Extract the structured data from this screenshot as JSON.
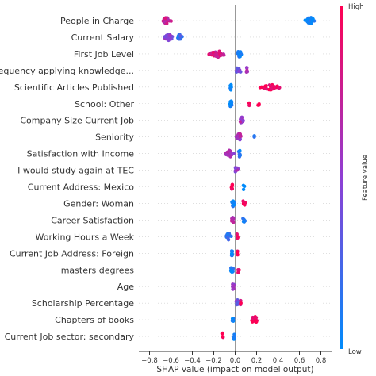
{
  "chart_data": {
    "type": "scatter",
    "subtype": "shap-beeswarm",
    "xlabel": "SHAP value (impact on model output)",
    "xlim": [
      -0.9,
      0.9
    ],
    "xticks": [
      "−0.8",
      "−0.6",
      "−0.4",
      "−0.2",
      "0.0",
      "0.2",
      "0.4",
      "0.6",
      "0.8"
    ],
    "xtick_values": [
      -0.8,
      -0.6,
      -0.4,
      -0.2,
      0.0,
      0.2,
      0.4,
      0.6,
      0.8
    ],
    "grid": false,
    "colorbar": {
      "label": "Feature value",
      "high": "High",
      "low": "Low",
      "high_color": "#ff0052",
      "low_color": "#008bfb"
    },
    "features": [
      {
        "name": "People in Charge",
        "clusters": [
          {
            "x": -0.64,
            "spread": 0.05,
            "n": 30,
            "v": 0.75
          },
          {
            "x": 0.7,
            "spread": 0.06,
            "n": 22,
            "v": 0.05
          }
        ]
      },
      {
        "name": "Current Salary",
        "clusters": [
          {
            "x": -0.62,
            "spread": 0.06,
            "n": 28,
            "v": 0.5
          },
          {
            "x": -0.52,
            "spread": 0.03,
            "n": 10,
            "v": 0.2
          }
        ]
      },
      {
        "name": "First Job Level",
        "clusters": [
          {
            "x": -0.16,
            "spread": 0.1,
            "n": 40,
            "v": 0.8
          },
          {
            "x": 0.04,
            "spread": 0.03,
            "n": 14,
            "v": 0.1
          }
        ]
      },
      {
        "name": "Frequency applying knowledge...",
        "clusters": [
          {
            "x": 0.03,
            "spread": 0.04,
            "n": 14,
            "v": 0.4
          },
          {
            "x": 0.11,
            "spread": 0.01,
            "n": 5,
            "v": 0.6
          }
        ]
      },
      {
        "name": "Scientific Articles Published",
        "clusters": [
          {
            "x": 0.33,
            "spread": 0.12,
            "n": 26,
            "v": 0.95
          },
          {
            "x": -0.04,
            "spread": 0.01,
            "n": 8,
            "v": 0.05
          }
        ]
      },
      {
        "name": "School: Other",
        "clusters": [
          {
            "x": -0.04,
            "spread": 0.02,
            "n": 10,
            "v": 0.05
          },
          {
            "x": 0.13,
            "spread": 0.01,
            "n": 4,
            "v": 0.95
          },
          {
            "x": 0.22,
            "spread": 0.01,
            "n": 4,
            "v": 0.95
          }
        ]
      },
      {
        "name": "Company Size Current Job",
        "clusters": [
          {
            "x": 0.06,
            "spread": 0.02,
            "n": 14,
            "v": 0.6
          }
        ]
      },
      {
        "name": "Seniority",
        "clusters": [
          {
            "x": 0.04,
            "spread": 0.04,
            "n": 16,
            "v": 0.6
          },
          {
            "x": 0.18,
            "spread": 0.01,
            "n": 3,
            "v": 0.15
          }
        ]
      },
      {
        "name": "Satisfaction with Income",
        "clusters": [
          {
            "x": -0.05,
            "spread": 0.05,
            "n": 30,
            "v": 0.6
          },
          {
            "x": 0.04,
            "spread": 0.02,
            "n": 8,
            "v": 0.1
          }
        ]
      },
      {
        "name": "I would study again at TEC",
        "clusters": [
          {
            "x": 0.01,
            "spread": 0.03,
            "n": 12,
            "v": 0.55
          }
        ]
      },
      {
        "name": "Current Address: Mexico",
        "clusters": [
          {
            "x": -0.03,
            "spread": 0.01,
            "n": 8,
            "v": 0.95
          },
          {
            "x": 0.08,
            "spread": 0.01,
            "n": 3,
            "v": 0.05
          }
        ]
      },
      {
        "name": "Gender: Woman",
        "clusters": [
          {
            "x": -0.02,
            "spread": 0.02,
            "n": 10,
            "v": 0.1
          },
          {
            "x": 0.08,
            "spread": 0.02,
            "n": 6,
            "v": 0.95
          }
        ]
      },
      {
        "name": "Career Satisfaction",
        "clusters": [
          {
            "x": -0.02,
            "spread": 0.02,
            "n": 12,
            "v": 0.7
          },
          {
            "x": 0.08,
            "spread": 0.02,
            "n": 6,
            "v": 0.05
          }
        ]
      },
      {
        "name": "Working Hours a Week",
        "clusters": [
          {
            "x": -0.06,
            "spread": 0.04,
            "n": 18,
            "v": 0.15
          },
          {
            "x": 0.02,
            "spread": 0.01,
            "n": 4,
            "v": 0.95
          }
        ]
      },
      {
        "name": "Current Job Address: Foreign",
        "clusters": [
          {
            "x": -0.03,
            "spread": 0.01,
            "n": 10,
            "v": 0.05
          },
          {
            "x": 0.02,
            "spread": 0.01,
            "n": 3,
            "v": 0.95
          }
        ]
      },
      {
        "name": "masters degrees",
        "clusters": [
          {
            "x": -0.03,
            "spread": 0.02,
            "n": 10,
            "v": 0.05
          },
          {
            "x": 0.03,
            "spread": 0.01,
            "n": 3,
            "v": 0.95
          }
        ]
      },
      {
        "name": "Age",
        "clusters": [
          {
            "x": -0.02,
            "spread": 0.02,
            "n": 14,
            "v": 0.55
          }
        ]
      },
      {
        "name": "Scholarship Percentage",
        "clusters": [
          {
            "x": 0.02,
            "spread": 0.03,
            "n": 14,
            "v": 0.4
          },
          {
            "x": 0.05,
            "spread": 0.01,
            "n": 4,
            "v": 0.9
          }
        ]
      },
      {
        "name": "Chapters of books",
        "clusters": [
          {
            "x": 0.18,
            "spread": 0.05,
            "n": 16,
            "v": 0.95
          },
          {
            "x": -0.02,
            "spread": 0.01,
            "n": 6,
            "v": 0.05
          }
        ]
      },
      {
        "name": "Current Job sector: secondary",
        "clusters": [
          {
            "x": -0.01,
            "spread": 0.01,
            "n": 8,
            "v": 0.05
          },
          {
            "x": -0.12,
            "spread": 0.04,
            "n": 5,
            "v": 0.95
          }
        ]
      }
    ]
  }
}
